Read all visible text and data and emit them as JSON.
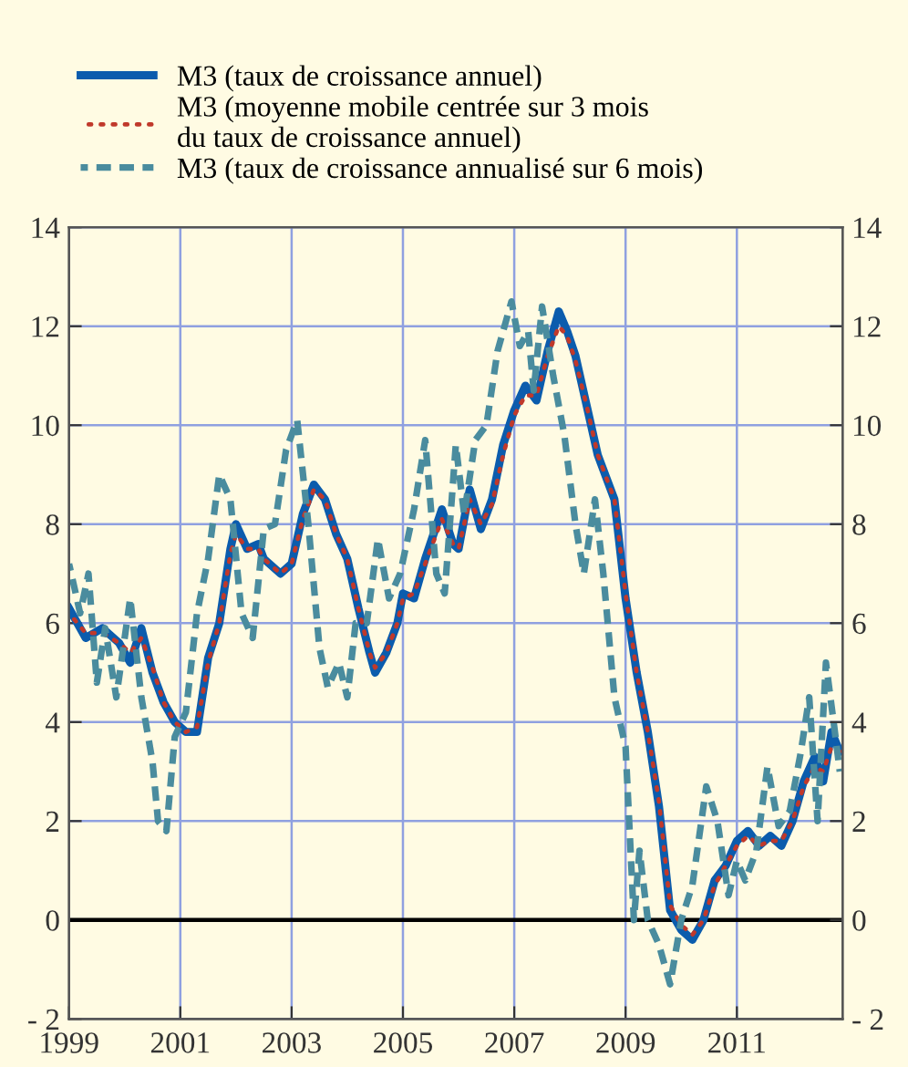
{
  "chart_data": {
    "type": "line",
    "series": [
      {
        "name": "M3 (taux de croissance annuel)",
        "color": "#0b5cad",
        "line_style": "solid",
        "x": [
          1999.0,
          1999.3,
          1999.6,
          1999.9,
          2000.1,
          2000.3,
          2000.5,
          2000.7,
          2000.9,
          2001.1,
          2001.3,
          2001.5,
          2001.7,
          2001.9,
          2002.0,
          2002.2,
          2002.4,
          2002.5,
          2002.8,
          2003.0,
          2003.2,
          2003.4,
          2003.6,
          2003.8,
          2004.0,
          2004.2,
          2004.4,
          2004.5,
          2004.7,
          2004.9,
          2005.0,
          2005.2,
          2005.4,
          2005.7,
          2005.9,
          2006.0,
          2006.2,
          2006.4,
          2006.6,
          2006.8,
          2007.0,
          2007.2,
          2007.4,
          2007.6,
          2007.8,
          2007.95,
          2008.1,
          2008.3,
          2008.5,
          2008.8,
          2009.0,
          2009.2,
          2009.4,
          2009.6,
          2009.8,
          2010.0,
          2010.2,
          2010.4,
          2010.6,
          2010.8,
          2011.0,
          2011.2,
          2011.4,
          2011.6,
          2011.8,
          2012.0,
          2012.2,
          2012.4,
          2012.55,
          2012.7,
          2012.85
        ],
        "values": [
          6.3,
          5.7,
          5.9,
          5.6,
          5.2,
          5.9,
          5.0,
          4.4,
          4.0,
          3.8,
          3.8,
          5.3,
          6.0,
          7.5,
          8.0,
          7.5,
          7.6,
          7.3,
          7.0,
          7.2,
          8.2,
          8.8,
          8.5,
          7.8,
          7.3,
          6.3,
          5.4,
          5.0,
          5.4,
          6.0,
          6.6,
          6.5,
          7.3,
          8.3,
          7.6,
          7.5,
          8.7,
          7.9,
          8.5,
          9.6,
          10.3,
          10.8,
          10.5,
          11.5,
          12.3,
          11.9,
          11.4,
          10.4,
          9.4,
          8.5,
          6.5,
          5.0,
          3.8,
          2.3,
          0.2,
          -0.2,
          -0.4,
          0.0,
          0.8,
          1.1,
          1.6,
          1.8,
          1.5,
          1.7,
          1.5,
          2.0,
          2.8,
          3.3,
          2.8,
          3.8,
          3.4
        ]
      },
      {
        "name": "M3 (moyenne mobile centrée sur 3 mois\ndu taux de croissance annuel)",
        "color": "#c0392b",
        "line_style": "dotted",
        "x": [
          1999.0,
          1999.3,
          1999.6,
          1999.9,
          2000.1,
          2000.3,
          2000.5,
          2000.7,
          2000.9,
          2001.1,
          2001.3,
          2001.5,
          2001.7,
          2001.9,
          2002.0,
          2002.2,
          2002.4,
          2002.5,
          2002.8,
          2003.0,
          2003.2,
          2003.4,
          2003.6,
          2003.8,
          2004.0,
          2004.2,
          2004.4,
          2004.5,
          2004.7,
          2004.9,
          2005.0,
          2005.2,
          2005.4,
          2005.7,
          2005.9,
          2006.0,
          2006.2,
          2006.4,
          2006.6,
          2006.8,
          2007.0,
          2007.2,
          2007.4,
          2007.6,
          2007.8,
          2007.95,
          2008.1,
          2008.3,
          2008.5,
          2008.8,
          2009.0,
          2009.2,
          2009.4,
          2009.6,
          2009.8,
          2010.0,
          2010.2,
          2010.4,
          2010.6,
          2010.8,
          2011.0,
          2011.2,
          2011.4,
          2011.6,
          2011.8,
          2012.0,
          2012.2,
          2012.4,
          2012.55,
          2012.7,
          2012.85
        ],
        "values": [
          6.2,
          5.8,
          5.8,
          5.6,
          5.4,
          5.7,
          5.1,
          4.4,
          4.0,
          3.8,
          3.9,
          5.2,
          6.0,
          7.4,
          7.8,
          7.5,
          7.5,
          7.3,
          7.0,
          7.2,
          8.1,
          8.7,
          8.5,
          7.8,
          7.3,
          6.3,
          5.4,
          5.1,
          5.4,
          6.0,
          6.5,
          6.6,
          7.2,
          8.1,
          7.6,
          7.5,
          8.5,
          8.0,
          8.4,
          9.4,
          10.2,
          10.6,
          10.6,
          11.4,
          12.0,
          11.8,
          11.3,
          10.4,
          9.4,
          8.5,
          6.6,
          5.0,
          3.8,
          2.4,
          0.3,
          -0.1,
          -0.3,
          0.0,
          0.7,
          1.1,
          1.5,
          1.7,
          1.5,
          1.6,
          1.6,
          2.0,
          2.7,
          3.1,
          3.0,
          3.5,
          3.4
        ]
      },
      {
        "name": "M3 (taux de croissance annualisé sur 6 mois)",
        "color": "#4a8c9e",
        "line_style": "dashed",
        "x": [
          1999.0,
          1999.2,
          1999.35,
          1999.5,
          1999.65,
          1999.85,
          2000.1,
          2000.3,
          2000.5,
          2000.6,
          2000.75,
          2000.9,
          2001.1,
          2001.3,
          2001.5,
          2001.7,
          2001.9,
          2002.1,
          2002.3,
          2002.5,
          2002.7,
          2002.9,
          2003.1,
          2003.3,
          2003.5,
          2003.65,
          2003.85,
          2004.0,
          2004.15,
          2004.35,
          2004.55,
          2004.75,
          2004.95,
          2005.2,
          2005.4,
          2005.6,
          2005.75,
          2005.95,
          2006.1,
          2006.3,
          2006.5,
          2006.7,
          2006.95,
          2007.1,
          2007.25,
          2007.35,
          2007.5,
          2007.7,
          2007.9,
          2008.1,
          2008.25,
          2008.45,
          2008.6,
          2008.8,
          2009.0,
          2009.15,
          2009.25,
          2009.4,
          2009.6,
          2009.8,
          2010.0,
          2010.2,
          2010.45,
          2010.65,
          2010.85,
          2011.0,
          2011.15,
          2011.35,
          2011.55,
          2011.75,
          2011.95,
          2012.15,
          2012.3,
          2012.45,
          2012.6,
          2012.75,
          2012.85
        ],
        "values": [
          7.2,
          6.2,
          7.0,
          4.8,
          5.9,
          4.5,
          6.5,
          4.5,
          3.2,
          2.0,
          1.8,
          3.7,
          4.2,
          6.2,
          7.3,
          9.0,
          8.5,
          6.2,
          5.7,
          7.9,
          8.0,
          9.5,
          10.1,
          8.0,
          5.5,
          4.7,
          5.2,
          4.5,
          6.0,
          6.0,
          7.7,
          6.5,
          7.0,
          8.3,
          9.7,
          7.0,
          6.6,
          9.6,
          8.2,
          9.7,
          10.0,
          11.5,
          12.5,
          11.6,
          11.9,
          10.7,
          12.4,
          11.0,
          9.8,
          8.0,
          7.0,
          8.5,
          7.0,
          4.5,
          3.5,
          0.0,
          1.4,
          0.0,
          -0.5,
          -1.3,
          0.0,
          0.7,
          2.7,
          2.0,
          0.5,
          1.2,
          0.8,
          1.4,
          3.1,
          1.9,
          2.2,
          3.4,
          4.5,
          2.0,
          5.2,
          3.9,
          3.0
        ]
      }
    ],
    "xlim": [
      1999,
      2012.9
    ],
    "xticks": [
      1999,
      2001,
      2003,
      2005,
      2007,
      2009,
      2011
    ],
    "ylim": [
      -2,
      14
    ],
    "yticks": [
      {
        "value": -2,
        "label": "- 2"
      },
      0,
      2,
      4,
      6,
      8,
      10,
      12,
      14
    ],
    "y2lim": [
      -2,
      14
    ],
    "y2ticks": [
      {
        "value": -2,
        "label": "- 2"
      },
      0,
      2,
      4,
      6,
      8,
      10,
      12,
      14
    ],
    "ref_lines": [
      {
        "axis": "y",
        "value": 0,
        "color": "#000000",
        "line_style": "solid"
      }
    ],
    "grid": true,
    "legend": "top left",
    "marker": "none"
  }
}
